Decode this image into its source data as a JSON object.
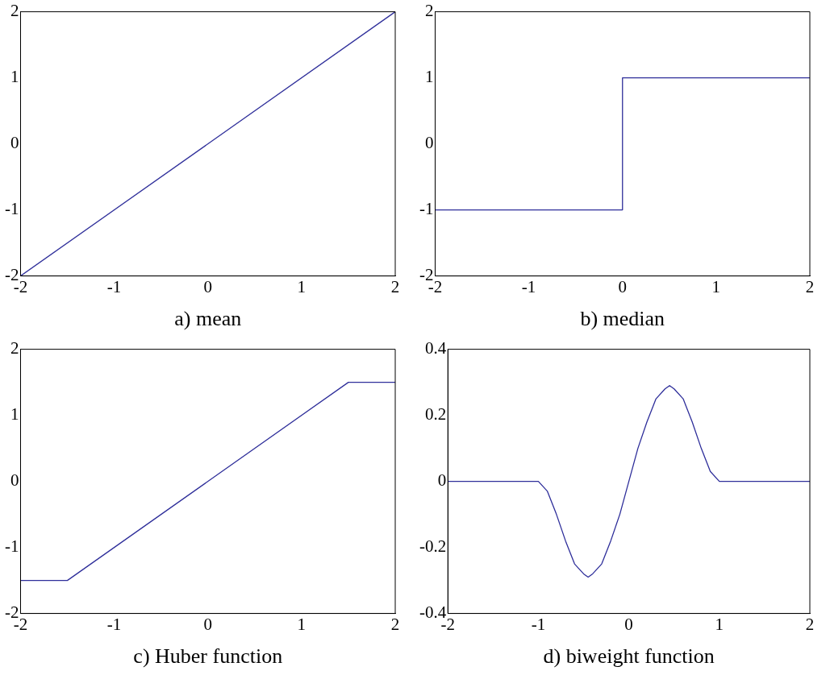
{
  "chart_data": [
    {
      "type": "line",
      "xlabel": "a) mean",
      "color": "#2e2e9a",
      "marker": "none",
      "grid": false,
      "x": [
        -2,
        2
      ],
      "values": [
        -2,
        2
      ],
      "xlim": [
        -2,
        2
      ],
      "ylim": [
        -2,
        2
      ],
      "xticks": [
        -2,
        -1,
        0,
        1,
        2
      ],
      "yticks": [
        -2,
        -1,
        0,
        1,
        2
      ]
    },
    {
      "type": "line",
      "xlabel": "b) median",
      "color": "#2e2e9a",
      "marker": "none",
      "grid": false,
      "x": [
        -2,
        0,
        0,
        2
      ],
      "values": [
        -1,
        -1,
        1,
        1
      ],
      "xlim": [
        -2,
        2
      ],
      "ylim": [
        -2,
        2
      ],
      "xticks": [
        -2,
        -1,
        0,
        1,
        2
      ],
      "yticks": [
        -2,
        -1,
        0,
        1,
        2
      ]
    },
    {
      "type": "line",
      "xlabel": "c) Huber function",
      "color": "#2e2e9a",
      "marker": "none",
      "grid": false,
      "x": [
        -2,
        -1.5,
        1.5,
        2
      ],
      "values": [
        -1.5,
        -1.5,
        1.5,
        1.5
      ],
      "xlim": [
        -2,
        2
      ],
      "ylim": [
        -2,
        2
      ],
      "xticks": [
        -2,
        -1,
        0,
        1,
        2
      ],
      "yticks": [
        -2,
        -1,
        0,
        1,
        2
      ]
    },
    {
      "type": "line",
      "xlabel": "d) biweight function",
      "color": "#2e2e9a",
      "marker": "none",
      "grid": false,
      "x": [
        -2,
        -1,
        -0.9,
        -0.8,
        -0.7,
        -0.6,
        -0.5,
        -0.45,
        -0.4,
        -0.3,
        -0.2,
        -0.1,
        0,
        0.1,
        0.2,
        0.3,
        0.4,
        0.45,
        0.5,
        0.6,
        0.7,
        0.8,
        0.9,
        1,
        2
      ],
      "values": [
        0,
        0,
        -0.03,
        -0.1,
        -0.18,
        -0.25,
        -0.28,
        -0.29,
        -0.28,
        -0.25,
        -0.18,
        -0.1,
        0,
        0.1,
        0.18,
        0.25,
        0.28,
        0.29,
        0.28,
        0.25,
        0.18,
        0.1,
        0.03,
        0,
        0
      ],
      "xlim": [
        -2,
        2
      ],
      "ylim": [
        -0.4,
        0.4
      ],
      "xticks": [
        -2,
        -1,
        0,
        1,
        2
      ],
      "yticks": [
        -0.4,
        -0.2,
        0,
        0.2,
        0.4
      ]
    }
  ]
}
